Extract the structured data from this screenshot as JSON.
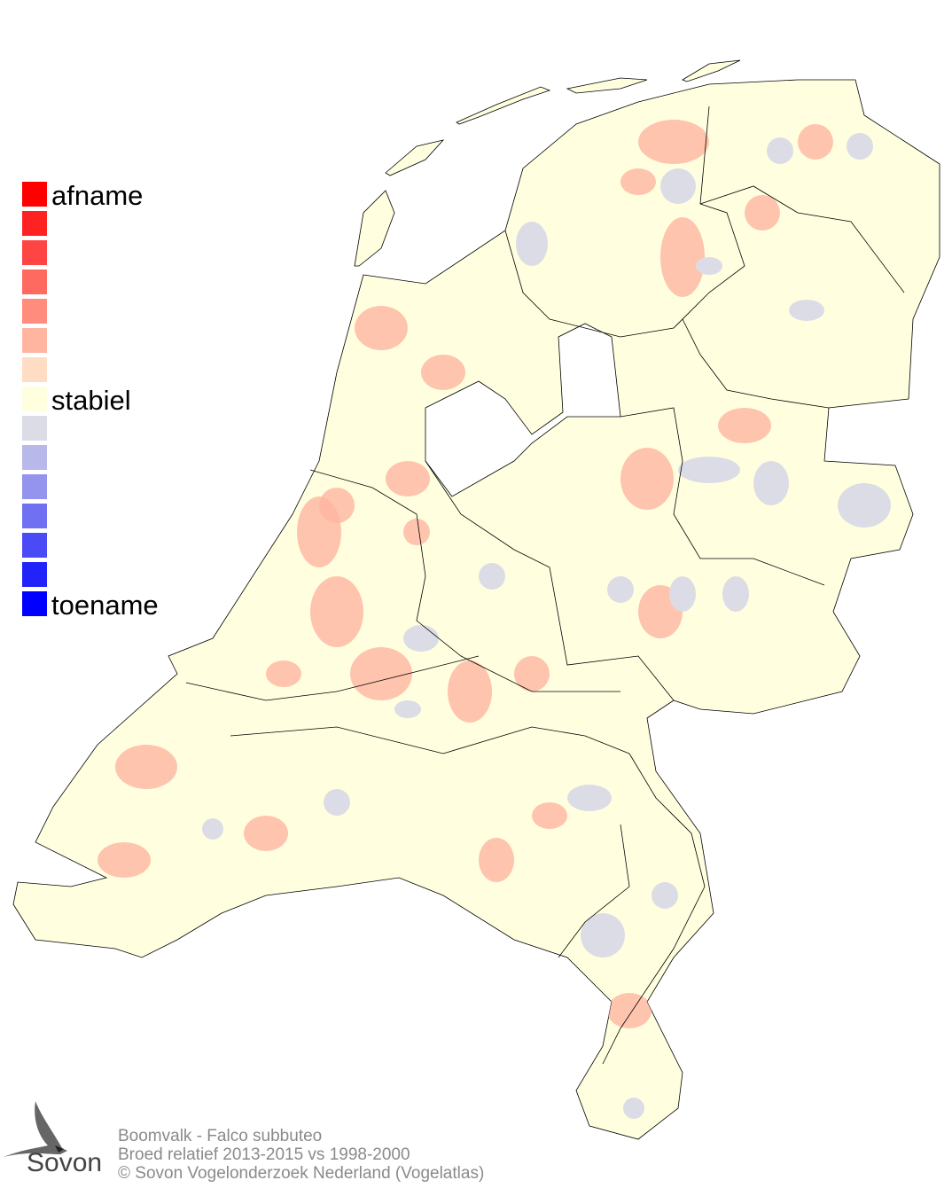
{
  "legend": {
    "labels": {
      "top": "afname",
      "middle": "stabiel",
      "bottom": "toename"
    },
    "colors": [
      "#ff0000",
      "#ff2222",
      "#ff4444",
      "#ff6a60",
      "#ff8c7c",
      "#ffb5a0",
      "#ffdcc4",
      "#ffffe0",
      "#dcdce6",
      "#b8b8ea",
      "#9494ee",
      "#7070f2",
      "#4a4af6",
      "#2222fa",
      "#0000ff"
    ]
  },
  "map": {
    "land_color": "#ffffe0",
    "decline_color": "#ffb5a0",
    "increase_color": "#dcdce6",
    "border_color": "#000000"
  },
  "footer": {
    "line1": "Boomvalk - Falco subbuteo",
    "line2": "Broed relatief 2013-2015 vs 1998-2000",
    "line3": "© Sovon Vogelonderzoek Nederland (Vogelatlas)"
  },
  "logo": {
    "text": "Sovon",
    "icon": "swallow-icon"
  }
}
